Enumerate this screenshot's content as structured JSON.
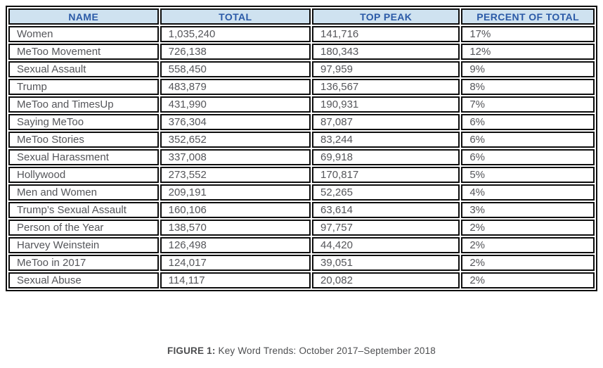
{
  "table": {
    "columns": [
      "NAME",
      "TOTAL",
      "TOP PEAK",
      "PERCENT OF TOTAL"
    ],
    "rows": [
      [
        "Women",
        "1,035,240",
        "141,716",
        "17%"
      ],
      [
        "MeToo Movement",
        "726,138",
        "180,343",
        "12%"
      ],
      [
        "Sexual Assault",
        "558,450",
        "97,959",
        "9%"
      ],
      [
        "Trump",
        "483,879",
        "136,567",
        "8%"
      ],
      [
        "MeToo and TimesUp",
        "431,990",
        "190,931",
        "7%"
      ],
      [
        "Saying MeToo",
        "376,304",
        "87,087",
        "6%"
      ],
      [
        "MeToo Stories",
        "352,652",
        "83,244",
        "6%"
      ],
      [
        "Sexual Harassment",
        "337,008",
        "69,918",
        "6%"
      ],
      [
        "Hollywood",
        "273,552",
        "170,817",
        "5%"
      ],
      [
        "Men and Women",
        "209,191",
        "52,265",
        "4%"
      ],
      [
        "Trump’s Sexual Assault",
        "160,106",
        "63,614",
        "3%"
      ],
      [
        "Person of the Year",
        "138,570",
        "97,757",
        "2%"
      ],
      [
        "Harvey Weinstein",
        "126,498",
        "44,420",
        "2%"
      ],
      [
        "MeToo in 2017",
        "124,017",
        "39,051",
        "2%"
      ],
      [
        "Sexual Abuse",
        "114,117",
        "20,082",
        "2%"
      ]
    ]
  },
  "caption": {
    "label": "FIGURE 1:",
    "text": " Key Word Trends: October 2017–September 2018"
  },
  "colors": {
    "header_bg": "#cfe2f0",
    "header_text": "#2b5aa7",
    "body_text": "#55565a",
    "border": "#0d0d0d"
  }
}
